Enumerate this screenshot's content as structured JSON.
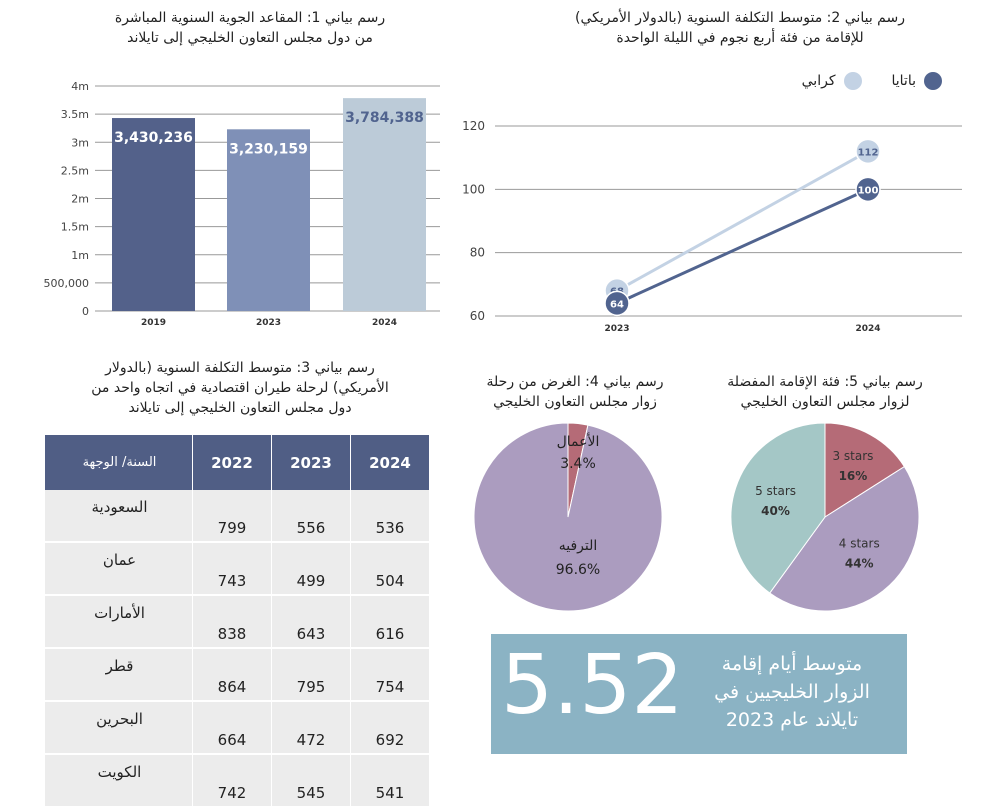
{
  "chart1": {
    "title_line1": "رسم بياني 1: المقاعد الجوية السنوية المباشرة",
    "title_line2": "من دول مجلس التعاون الخليجي إلى تايلاند"
  },
  "chart2": {
    "title_line1": "رسم بياني 2: متوسط التكلفة السنوية (بالدولار الأمريكي)",
    "title_line2": "للإقامة من فئة أربع نجوم في الليلة الواحدة",
    "legend": [
      "باتايا",
      "كرابي"
    ]
  },
  "chart3": {
    "title_line1": "رسم بياني 3: متوسط التكلفة السنوية (بالدولار",
    "title_line2": "الأمريكي) لرحلة طيران اقتصادية في اتجاه واحد من",
    "title_line3": "دول مجلس التعاون الخليجي إلى تايلاند"
  },
  "chart4": {
    "title_line1": "رسم بياني 4: الغرض من رحلة",
    "title_line2": "زوار مجلس التعاون الخليجي"
  },
  "chart5": {
    "title_line1": "رسم بياني 5: فئة الإقامة المفضلة",
    "title_line2": "لزوار مجلس التعاون الخليجي"
  },
  "kpi": {
    "value": "5.52",
    "line1": "متوسط أيام إقامة",
    "line2": "الزوار الخليجيين في",
    "line3": "تايلاند عام 2023"
  },
  "colors": {
    "bar_dark": "#53618a",
    "bar_mid": "#7f90b7",
    "bar_light": "#bccbd8",
    "pattaya": "#51648f",
    "krabi": "#c3d2e4",
    "pie_main": "#ab9cbf",
    "pie_accent": "#b56b77",
    "pie_teal": "#a4c7c6",
    "table_header": "#505e85",
    "kpi_bg": "#8bb3c4"
  },
  "chart_data": [
    {
      "type": "bar",
      "categories": [
        "2019",
        "2023",
        "2024"
      ],
      "values": [
        3430236,
        3230159,
        3784388
      ],
      "value_labels": [
        "3,430,236",
        "3,230,159",
        "3,784,388"
      ],
      "y_ticks": [
        0,
        500000,
        1000000,
        1500000,
        2000000,
        2500000,
        3000000,
        3500000,
        4000000
      ],
      "y_tick_labels": [
        "0",
        "500,000",
        "1m",
        "1.5m",
        "2m",
        "2.5m",
        "3m",
        "3.5m",
        "4m"
      ],
      "ylim": [
        0,
        4000000
      ]
    },
    {
      "type": "line",
      "x": [
        "2023",
        "2024"
      ],
      "series": [
        {
          "name": "كرابي",
          "values": [
            68,
            112
          ]
        },
        {
          "name": "باتايا",
          "values": [
            64,
            100
          ]
        }
      ],
      "y_ticks": [
        60,
        80,
        100,
        120
      ],
      "ylim": [
        60,
        120
      ]
    },
    {
      "type": "table",
      "columns": [
        "السنة/ الوجهة",
        "2022",
        "2023",
        "2024"
      ],
      "rows": [
        {
          "label": "السعودية",
          "values": [
            "799",
            "556",
            "536"
          ]
        },
        {
          "label": "عمان",
          "values": [
            "743",
            "499",
            "504"
          ]
        },
        {
          "label": "الأمارات",
          "values": [
            "838",
            "643",
            "616"
          ]
        },
        {
          "label": "قطر",
          "values": [
            "864",
            "795",
            "754"
          ]
        },
        {
          "label": "البحرين",
          "values": [
            "664",
            "472",
            "692"
          ]
        },
        {
          "label": "الكويت",
          "values": [
            "742",
            "545",
            "541"
          ]
        }
      ]
    },
    {
      "type": "pie",
      "slices": [
        {
          "label": "الأعمال",
          "value": 3.4,
          "value_label": "3.4%"
        },
        {
          "label": "الترفيه",
          "value": 96.6,
          "value_label": "96.6%"
        }
      ]
    },
    {
      "type": "pie",
      "slices": [
        {
          "label": "3 stars",
          "value": 16,
          "value_label": "16%"
        },
        {
          "label": "4 stars",
          "value": 44,
          "value_label": "44%"
        },
        {
          "label": "5 stars",
          "value": 40,
          "value_label": "40%"
        }
      ]
    }
  ]
}
